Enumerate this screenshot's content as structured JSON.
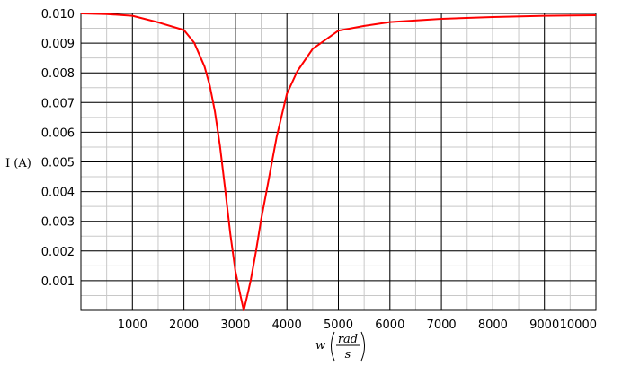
{
  "chart_data": {
    "type": "line",
    "xlabel_var": "w",
    "xlabel_num": "rad",
    "xlabel_den": "s",
    "ylabel": "I (A)",
    "xlim": [
      0,
      10000
    ],
    "ylim": [
      0,
      0.01
    ],
    "x_ticks": [
      1000,
      2000,
      3000,
      4000,
      5000,
      6000,
      7000,
      8000,
      9000,
      10000
    ],
    "x_tick_labels": [
      "1000",
      "2000",
      "3000",
      "4000",
      "5000",
      "6000",
      "7000",
      "8000",
      "9000",
      "10000"
    ],
    "y_ticks": [
      0.001,
      0.002,
      0.003,
      0.004,
      0.005,
      0.006,
      0.007,
      0.008,
      0.009,
      0.01
    ],
    "y_tick_labels": [
      "0.001",
      "0.002",
      "0.003",
      "0.004",
      "0.005",
      "0.006",
      "0.007",
      "0.008",
      "0.009",
      "0.010"
    ],
    "grid": true,
    "series": [
      {
        "color": "#ff0000",
        "x": [
          0,
          500,
          1000,
          1500,
          2000,
          2200,
          2400,
          2500,
          2600,
          2700,
          2800,
          2900,
          3000,
          3100,
          3162,
          3250,
          3300,
          3400,
          3500,
          3600,
          3800,
          4000,
          4200,
          4500,
          5000,
          5500,
          6000,
          7000,
          8000,
          9000,
          10000
        ],
        "y": [
          0.01,
          0.00998,
          0.00992,
          0.0097,
          0.00944,
          0.00901,
          0.00821,
          0.00758,
          0.00671,
          0.00554,
          0.0041,
          0.00258,
          0.00132,
          0.00049,
          0.0,
          0.00064,
          0.00104,
          0.00199,
          0.00306,
          0.00398,
          0.00583,
          0.0073,
          0.00805,
          0.00881,
          0.00942,
          0.00958,
          0.00971,
          0.00982,
          0.00988,
          0.00992,
          0.00994
        ]
      }
    ]
  }
}
